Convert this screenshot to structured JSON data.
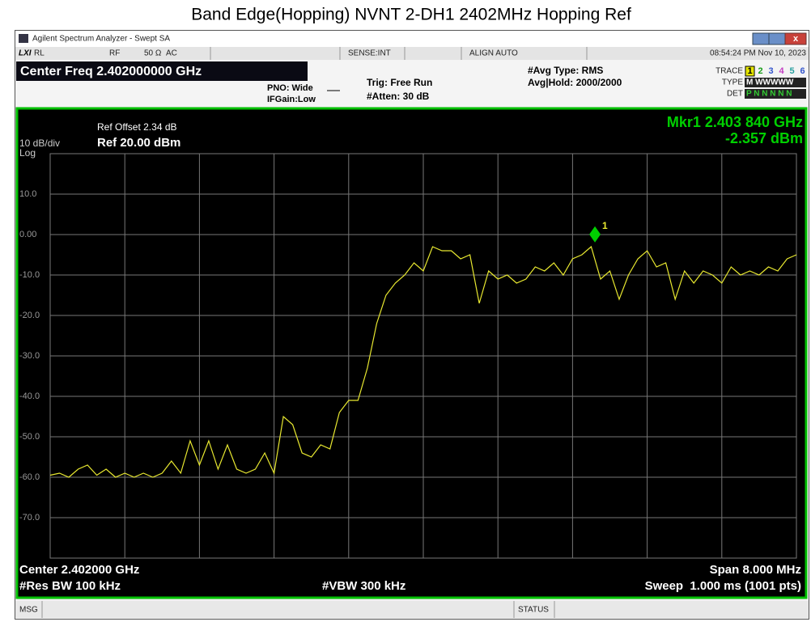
{
  "page_title": "Band Edge(Hopping) NVNT 2-DH1 2402MHz   Hopping Ref",
  "window": {
    "title": "Agilent Spectrum Analyzer - Swept SA",
    "logo": "LXI",
    "status_row": [
      "RL",
      "RF",
      "50 Ω",
      "AC",
      "SENSE:INT",
      "ALIGN AUTO",
      "08:54:24 PM Nov 10, 2023"
    ],
    "center_freq": "Center Freq 2.402000000 GHz",
    "pno": "PNO: Wide",
    "ifgain": "IFGain:Low",
    "trig": "Trig: Free Run",
    "atten": "#Atten: 30 dB",
    "avg_type": "#Avg Type: RMS",
    "avg_hold": "Avg|Hold: 2000/2000",
    "trace_label": "TRACE",
    "trace_nums": [
      "1",
      "2",
      "3",
      "4",
      "5",
      "6"
    ],
    "type_label": "TYPE",
    "type_value": "M WWWWW",
    "det_label": "DET",
    "det_value": "P N N N N N",
    "msg": "MSG",
    "status": "STATUS"
  },
  "chart_data": {
    "type": "line",
    "ref_offset": "Ref Offset 2.34 dB",
    "scale": "10 dB/div",
    "ref_level": "Ref 20.00 dBm",
    "log": "Log",
    "marker_freq": "Mkr1 2.403 840 GHz",
    "marker_level": "-2.357 dBm",
    "marker": {
      "x": 2.40384,
      "y": -2.357,
      "label": "1"
    },
    "center": "Center 2.402000 GHz",
    "res_bw": "#Res BW 100 kHz",
    "vbw": "#VBW 300 kHz",
    "span": "Span 8.000 MHz",
    "sweep": "Sweep  1.000 ms (1001 pts)",
    "xlim": [
      2.398,
      2.406
    ],
    "ylim": [
      -80,
      20
    ],
    "yticks": [
      {
        "value": 10,
        "label": "10.0"
      },
      {
        "value": 0,
        "label": "0.00"
      },
      {
        "value": -10,
        "label": "-10.0"
      },
      {
        "value": -20,
        "label": "-20.0"
      },
      {
        "value": -30,
        "label": "-30.0"
      },
      {
        "value": -40,
        "label": "-40.0"
      },
      {
        "value": -50,
        "label": "-50.0"
      },
      {
        "value": -60,
        "label": "-60.0"
      },
      {
        "value": -70,
        "label": "-70.0"
      }
    ],
    "grid": true,
    "x": [
      2.398,
      2.3981,
      2.3982,
      2.3983,
      2.3984,
      2.3985,
      2.3986,
      2.3987,
      2.3988,
      2.3989,
      2.399,
      2.3991,
      2.3992,
      2.3993,
      2.3994,
      2.3995,
      2.3996,
      2.3997,
      2.3998,
      2.3999,
      2.4,
      2.4001,
      2.4002,
      2.4003,
      2.4004,
      2.4005,
      2.4006,
      2.4007,
      2.4008,
      2.4009,
      2.401,
      2.4011,
      2.4012,
      2.4013,
      2.4014,
      2.4015,
      2.4016,
      2.4017,
      2.4018,
      2.4019,
      2.402,
      2.4021,
      2.4022,
      2.4023,
      2.4024,
      2.4025,
      2.4026,
      2.4027,
      2.4028,
      2.4029,
      2.403,
      2.4031,
      2.4032,
      2.4033,
      2.4034,
      2.4035,
      2.4036,
      2.4037,
      2.4038,
      2.4039,
      2.404,
      2.4041,
      2.4042,
      2.4043,
      2.4044,
      2.4045,
      2.4046,
      2.4047,
      2.4048,
      2.4049,
      2.405,
      2.4051,
      2.4052,
      2.4053,
      2.4054,
      2.4055,
      2.4056,
      2.4057,
      2.4058,
      2.4059,
      2.406
    ],
    "series": [
      {
        "name": "Trace 1",
        "color": "#e8e830",
        "values": [
          -59.5,
          -59,
          -60,
          -58,
          -57,
          -59.5,
          -58,
          -60,
          -59,
          -60,
          -59,
          -60,
          -59,
          -56,
          -59,
          -51,
          -57,
          -51,
          -58,
          -52,
          -58,
          -59,
          -58,
          -54,
          -59,
          -45,
          -47,
          -54,
          -55,
          -52,
          -53,
          -44,
          -41,
          -41,
          -33,
          -22,
          -15,
          -12,
          -10,
          -7,
          -9,
          -3,
          -4,
          -4,
          -6,
          -5,
          -17,
          -9,
          -11,
          -10,
          -12,
          -11,
          -8,
          -9,
          -7,
          -10,
          -6,
          -5,
          -3,
          -11,
          -9,
          -16,
          -10,
          -6,
          -4,
          -8,
          -7,
          -16,
          -9,
          -12,
          -9,
          -10,
          -12,
          -8,
          -10,
          -9,
          -10,
          -8,
          -9,
          -6,
          -5
        ]
      }
    ],
    "marker_color": "#00d000"
  }
}
